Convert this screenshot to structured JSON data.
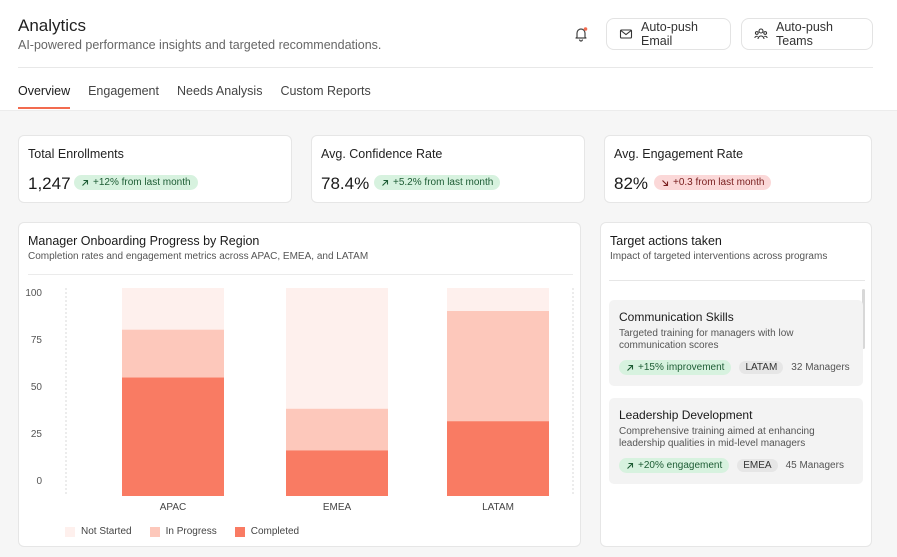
{
  "header": {
    "title": "Analytics",
    "subtitle": "AI-powered performance insights and targeted recommendations.",
    "email_button": "Auto-push Email",
    "teams_button": "Auto-push Teams"
  },
  "tabs": [
    "Overview",
    "Engagement",
    "Needs Analysis",
    "Custom Reports"
  ],
  "stats": [
    {
      "label": "Total Enrollments",
      "value": "1,247",
      "change": "+12% from last month",
      "trend": "up"
    },
    {
      "label": "Avg. Confidence Rate",
      "value": "78.4%",
      "change": "+5.2% from last month",
      "trend": "up"
    },
    {
      "label": "Avg. Engagement Rate",
      "value": "82%",
      "change": "+0.3 from last month",
      "trend": "down"
    }
  ],
  "chart_card": {
    "title": "Manager Onboarding Progress by Region",
    "subtitle": "Completion rates and engagement metrics across APAC, EMEA, and LATAM"
  },
  "chart_data": {
    "type": "bar",
    "stacked": true,
    "categories": [
      "APAC",
      "EMEA",
      "LATAM"
    ],
    "series": [
      {
        "name": "Completed",
        "values": [
          57,
          22,
          36
        ],
        "color": "#f97b63"
      },
      {
        "name": "In Progress",
        "values": [
          23,
          20,
          53
        ],
        "color": "#fdc8bb"
      },
      {
        "name": "Not Started",
        "values": [
          20,
          58,
          11
        ],
        "color": "#fef0ed"
      }
    ],
    "ylim": [
      0,
      100
    ],
    "yticks": [
      0,
      25,
      50,
      75,
      100
    ],
    "legend_order": [
      "Not Started",
      "In Progress",
      "Completed"
    ]
  },
  "actions_card": {
    "title": "Target actions taken",
    "subtitle": "Impact of targeted interventions across programs",
    "items": [
      {
        "title": "Communication Skills",
        "desc": "Targeted training for managers with low communication scores",
        "impact": "+15% improvement",
        "region": "LATAM",
        "count": "32 Managers"
      },
      {
        "title": "Leadership Development",
        "desc": "Comprehensive training aimed at enhancing leadership qualities in mid-level managers",
        "impact": "+20% engagement",
        "region": "EMEA",
        "count": "45 Managers"
      }
    ]
  },
  "colors": {
    "accent": "#f26b4f",
    "completed": "#f97b63",
    "in_progress": "#fdc8bb",
    "not_started": "#fef0ed"
  }
}
